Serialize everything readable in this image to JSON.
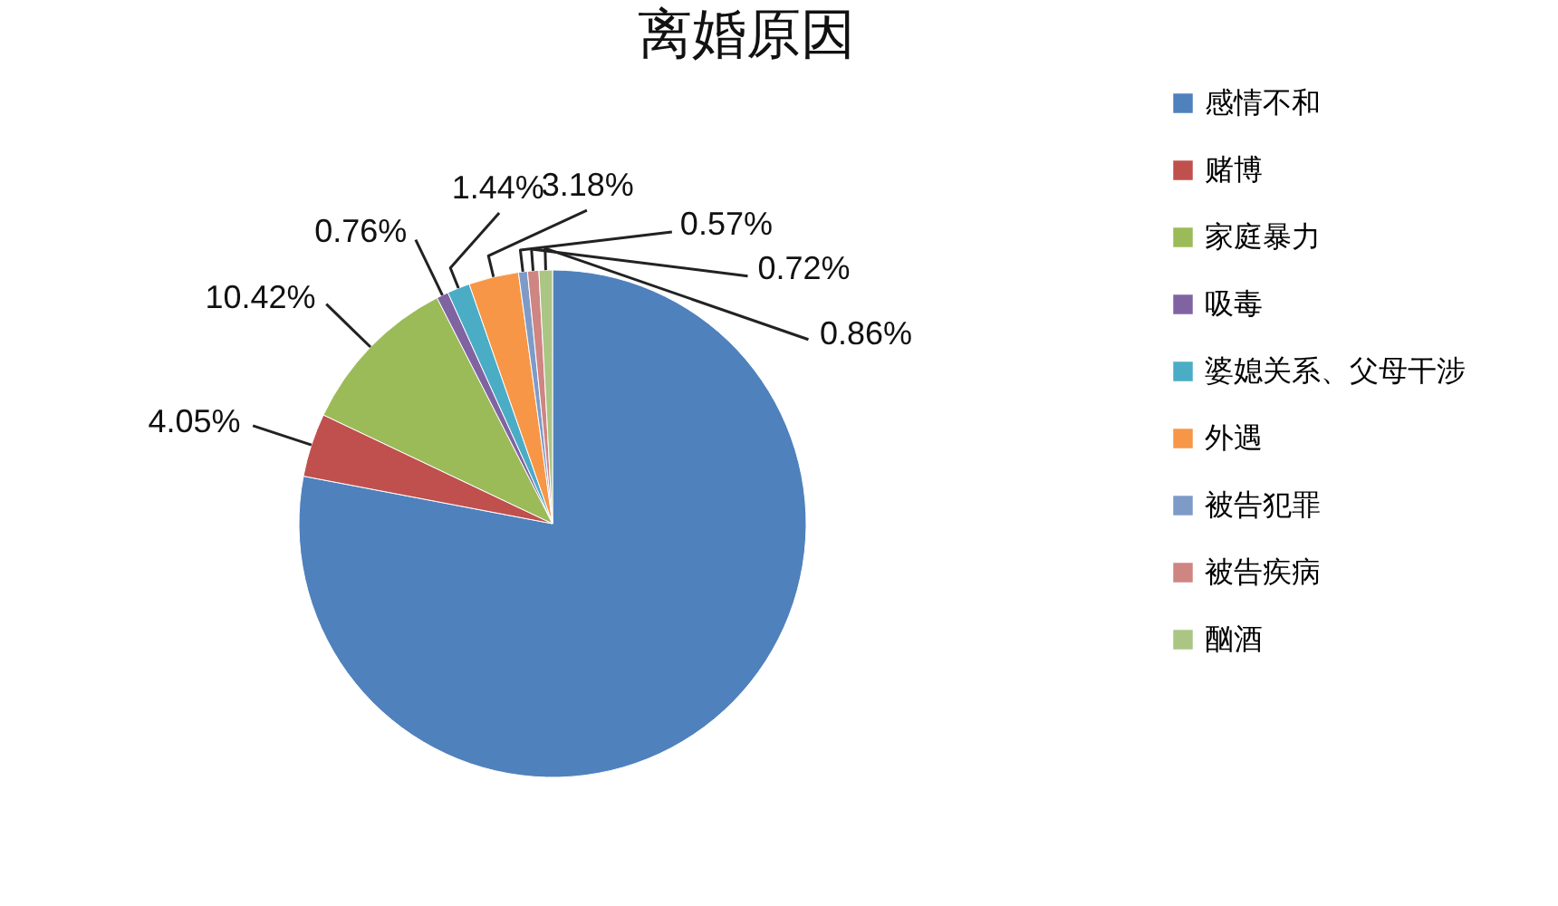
{
  "chart_data": {
    "type": "pie",
    "title": "离婚原因",
    "categories": [
      "感情不和",
      "赌博",
      "家庭暴力",
      "吸毒",
      "婆媳关系、父母干涉",
      "外遇",
      "被告犯罪",
      "被告疾病",
      "酗酒"
    ],
    "values": [
      78.0,
      4.05,
      10.42,
      0.76,
      1.44,
      3.18,
      0.57,
      0.72,
      0.86
    ],
    "colors": [
      "#4f81bd",
      "#c0504d",
      "#9bbb59",
      "#8064a2",
      "#4bacc6",
      "#f79646",
      "#7e9bc8",
      "#cf8582",
      "#abc584"
    ],
    "value_labels": [
      null,
      "4.05%",
      "10.42%",
      "0.76%",
      "1.44%",
      "3.18%",
      "0.57%",
      "0.72%",
      "0.86%"
    ],
    "legend": "right"
  }
}
